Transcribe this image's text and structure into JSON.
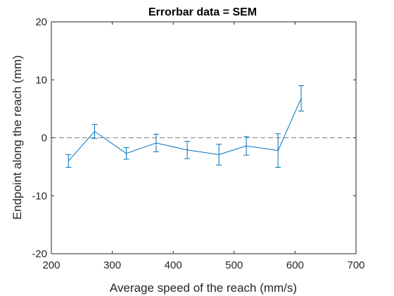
{
  "chart_data": {
    "type": "line",
    "title": "Errorbar data = SEM",
    "xlabel": "Average speed of the reach (mm/s)",
    "ylabel": "Endpoint along the reach (mm)",
    "xlim": [
      200,
      700
    ],
    "ylim": [
      -20,
      20
    ],
    "xticks": [
      200,
      300,
      400,
      500,
      600,
      700
    ],
    "yticks": [
      -20,
      -10,
      0,
      10,
      20
    ],
    "xtick_labels": [
      "200",
      "300",
      "400",
      "500",
      "600",
      "700"
    ],
    "ytick_labels": [
      "-20",
      "-10",
      "0",
      "10",
      "20"
    ],
    "grid": false,
    "reference_line": {
      "y": 0,
      "style": "dashed",
      "color": "#808080"
    },
    "series": [
      {
        "color": "#0072BD",
        "x": [
          228,
          271,
          323,
          372,
          423,
          475,
          520,
          572,
          610
        ],
        "y": [
          -4.0,
          1.1,
          -2.7,
          -0.9,
          -2.1,
          -2.9,
          -1.4,
          -2.2,
          6.8
        ],
        "err": [
          1.1,
          1.2,
          1.0,
          1.5,
          1.5,
          1.8,
          1.6,
          2.9,
          2.2
        ]
      }
    ]
  }
}
